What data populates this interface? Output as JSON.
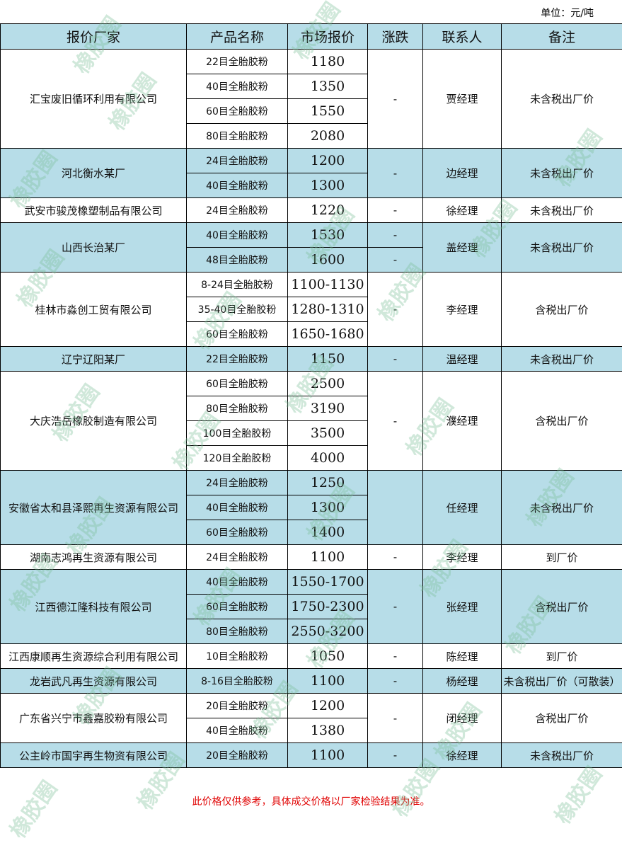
{
  "unit_label": "单位：元/吨",
  "headers": [
    "报价厂家",
    "产品名称",
    "市场报价",
    "涨跌",
    "联系人",
    "备注"
  ],
  "groups": [
    {
      "company": "汇宝废旧循环利用有限公司",
      "highlight": false,
      "products": [
        {
          "name": "22目全胎胶粉",
          "price": "1180"
        },
        {
          "name": "40目全胎胶粉",
          "price": "1350"
        },
        {
          "name": "60目全胎胶粉",
          "price": "1550"
        },
        {
          "name": "80目全胎胶粉",
          "price": "2080"
        }
      ],
      "change": "-",
      "contact": "贾经理",
      "note": "未含税出厂价"
    },
    {
      "company": "河北衡水某厂",
      "highlight": true,
      "products": [
        {
          "name": "24目全胎胶粉",
          "price": "1200"
        },
        {
          "name": "40目全胎胶粉",
          "price": "1300"
        }
      ],
      "change": "-",
      "contact": "边经理",
      "note": "未含税出厂价"
    },
    {
      "company": "武安市骏茂橡塑制品有限公司",
      "highlight": false,
      "products": [
        {
          "name": "24目全胎胶粉",
          "price": "1220"
        }
      ],
      "change": "-",
      "contact": "徐经理",
      "note": "未含税出厂价"
    },
    {
      "company": "山西长治某厂",
      "highlight": true,
      "split_change": true,
      "products": [
        {
          "name": "40目全胎胶粉",
          "price": "1530",
          "change": "-"
        },
        {
          "name": "48目全胎胶粉",
          "price": "1600",
          "change": "-"
        }
      ],
      "contact": "盖经理",
      "note": "未含税出厂价"
    },
    {
      "company": "桂林市淼创工贸有限公司",
      "highlight": false,
      "products": [
        {
          "name": "8-24目全胎胶粉",
          "price": "1100-1130"
        },
        {
          "name": "35-40目全胎胶粉",
          "price": "1280-1310"
        },
        {
          "name": "60目全胎胶粉",
          "price": "1650-1680"
        }
      ],
      "change": "-",
      "contact": "李经理",
      "note": "含税出厂价"
    },
    {
      "company": "辽宁辽阳某厂",
      "highlight": true,
      "products": [
        {
          "name": "22目全胎胶粉",
          "price": "1150"
        }
      ],
      "change": "-",
      "contact": "温经理",
      "note": "未含税出厂价"
    },
    {
      "company": "大庆浩岳橡胶制造有限公司",
      "highlight": false,
      "products": [
        {
          "name": "60目全胎胶粉",
          "price": "2500"
        },
        {
          "name": "80目全胎胶粉",
          "price": "3190"
        },
        {
          "name": "100目全胎胶粉",
          "price": "3500"
        },
        {
          "name": "120目全胎胶粉",
          "price": "4000"
        }
      ],
      "change": "-",
      "contact": "濮经理",
      "note": "含税出厂价"
    },
    {
      "company": "安徽省太和县泽熙再生资源有限公司",
      "highlight": true,
      "products": [
        {
          "name": "24目全胎胶粉",
          "price": "1250"
        },
        {
          "name": "40目全胎胶粉",
          "price": "1300"
        },
        {
          "name": "60目全胎胶粉",
          "price": "1400"
        }
      ],
      "change": "",
      "contact": "任经理",
      "note": "未含税出厂价"
    },
    {
      "company": "湖南志鸿再生资源有限公司",
      "highlight": false,
      "products": [
        {
          "name": "24目全胎胶粉",
          "price": "1100"
        }
      ],
      "change": "-",
      "contact": "李经理",
      "note": "到厂价"
    },
    {
      "company": "江西德江隆科技有限公司",
      "highlight": true,
      "products": [
        {
          "name": "40目全胎胶粉",
          "price": "1550-1700"
        },
        {
          "name": "60目全胎胶粉",
          "price": "1750-2300"
        },
        {
          "name": "80目全胎胶粉",
          "price": "2550-3200"
        }
      ],
      "change": "-",
      "contact": "张经理",
      "note": "含税出厂价"
    },
    {
      "company": "江西康顺再生资源综合利用有限公司",
      "highlight": false,
      "products": [
        {
          "name": "10目全胎胶粉",
          "price": "1050"
        }
      ],
      "change": "-",
      "contact": "陈经理",
      "note": "到厂价"
    },
    {
      "company": "龙岩武凡再生资源有限公司",
      "highlight": true,
      "products": [
        {
          "name": "8-16目全胎胶粉",
          "price": "1100"
        }
      ],
      "change": "-",
      "contact": "杨经理",
      "note": "未含税出厂价（可散装）"
    },
    {
      "company": "广东省兴宁市鑫嘉胶粉有限公司",
      "highlight": false,
      "products": [
        {
          "name": "20目全胎胶粉",
          "price": "1200"
        },
        {
          "name": "40目全胎胶粉",
          "price": "1380"
        }
      ],
      "change": "-",
      "contact": "闭经理",
      "note": "含税出厂价"
    },
    {
      "company": "公主岭市国宇再生物资有限公司",
      "highlight": true,
      "products": [
        {
          "name": "20目全胎胶粉",
          "price": "1100"
        }
      ],
      "change": "-",
      "contact": "徐经理",
      "note": "未含税出厂价"
    }
  ],
  "footer_note": "此价格仅供参考，具体成交价格以厂家检验结果为准。",
  "watermark": "橡胶圈",
  "colors": {
    "header_bg": "#b7dde8",
    "row_highlight": "#b7dde8",
    "footer_text": "#e00000",
    "watermark": "#78be96"
  }
}
